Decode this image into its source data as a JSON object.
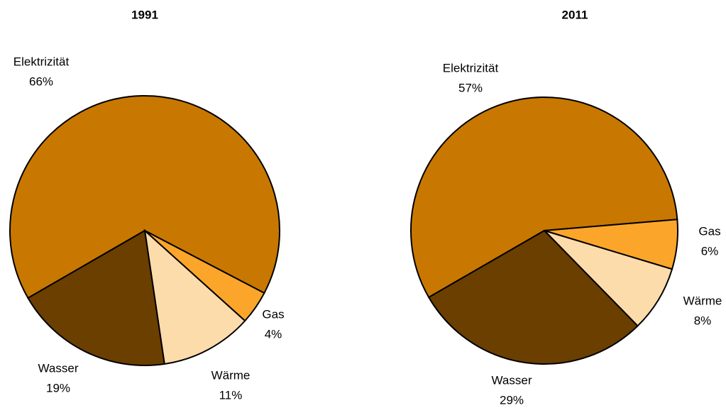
{
  "chart_data": [
    {
      "type": "pie",
      "title": "1991",
      "categories": [
        "Elektrizität",
        "Gas",
        "Wärme",
        "Wasser"
      ],
      "values": [
        66,
        4,
        11,
        19
      ],
      "value_labels": [
        "66%",
        "4%",
        "11%",
        "19%"
      ],
      "colors": [
        "#c87800",
        "#fba62a",
        "#fddcab",
        "#6b3f00"
      ]
    },
    {
      "type": "pie",
      "title": "2011",
      "categories": [
        "Elektrizität",
        "Gas",
        "Wärme",
        "Wasser"
      ],
      "values": [
        57,
        6,
        8,
        29
      ],
      "value_labels": [
        "57%",
        "6%",
        "8%",
        "29%"
      ],
      "colors": [
        "#c87800",
        "#fba62a",
        "#fddcab",
        "#6b3f00"
      ]
    }
  ]
}
